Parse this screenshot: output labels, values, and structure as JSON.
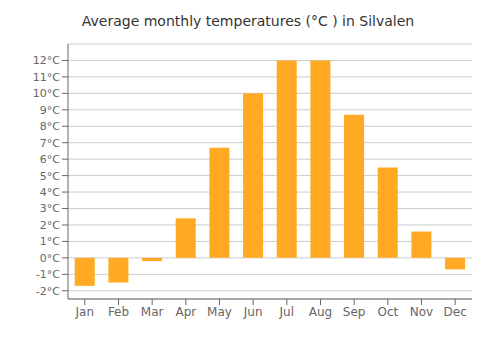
{
  "chart_data": {
    "type": "bar",
    "title": "Average monthly temperatures (°C ) in Silvalen",
    "categories": [
      "Jan",
      "Feb",
      "Mar",
      "Apr",
      "May",
      "Jun",
      "Jul",
      "Aug",
      "Sep",
      "Oct",
      "Nov",
      "Dec"
    ],
    "values": [
      -1.7,
      -1.5,
      -0.2,
      2.4,
      6.7,
      10.0,
      12.0,
      12.0,
      8.7,
      5.5,
      1.6,
      -0.7
    ],
    "color": "#FFAA22",
    "ylim": [
      -2.5,
      13.0
    ],
    "yticks": [
      {
        "value": -2,
        "label": "-2°C"
      },
      {
        "value": -1,
        "label": "-1°C"
      },
      {
        "value": 0,
        "label": "0°C"
      },
      {
        "value": 1,
        "label": "1°C"
      },
      {
        "value": 2,
        "label": "2°C"
      },
      {
        "value": 3,
        "label": "3°C"
      },
      {
        "value": 4,
        "label": "4°C"
      },
      {
        "value": 5,
        "label": "5°C"
      },
      {
        "value": 6,
        "label": "6°C"
      },
      {
        "value": 7,
        "label": "7°C"
      },
      {
        "value": 8,
        "label": "8°C"
      },
      {
        "value": 9,
        "label": "9°C"
      },
      {
        "value": 10,
        "label": "10°C"
      },
      {
        "value": 11,
        "label": "11°C"
      },
      {
        "value": 12,
        "label": "12°C"
      }
    ],
    "grid": true
  }
}
